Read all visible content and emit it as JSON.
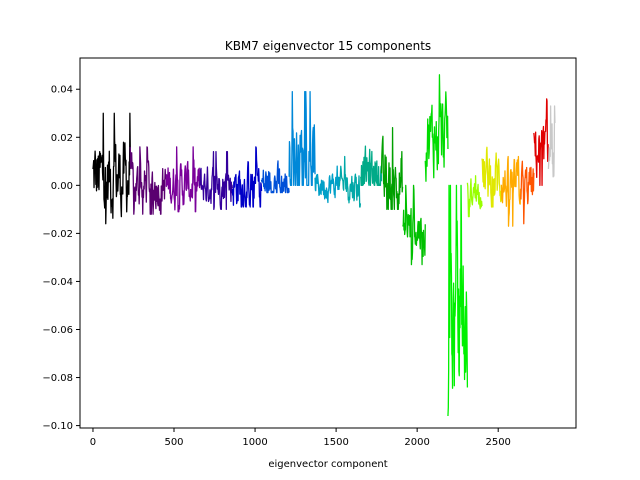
{
  "chart_data": {
    "type": "line",
    "title": "KBM7 eigenvector 15 components",
    "xlabel": "eigenvector component",
    "ylabel": "",
    "xlim": [
      -80,
      2980
    ],
    "ylim": [
      -0.101,
      0.053
    ],
    "x_ticks": [
      0,
      500,
      1000,
      1500,
      2000,
      2500
    ],
    "x_tick_labels": [
      "0",
      "500",
      "1000",
      "1500",
      "2000",
      "2500"
    ],
    "y_ticks": [
      0.04,
      0.02,
      0.0,
      -0.02,
      -0.04,
      -0.06,
      -0.08,
      -0.1
    ],
    "y_tick_labels": [
      "0.04",
      "0.02",
      "0.00",
      "−0.02",
      "−0.04",
      "−0.06",
      "−0.08",
      "−0.10"
    ],
    "grid": false,
    "legend": "none",
    "series": [
      {
        "color": "#000000",
        "x_range": [
          0,
          230
        ],
        "center": 0.003,
        "min": -0.016,
        "max": 0.03
      },
      {
        "color": "#5a0070",
        "x_range": [
          230,
          450
        ],
        "center": 0.0,
        "min": -0.012,
        "max": 0.016
      },
      {
        "color": "#7a009a",
        "x_range": [
          450,
          660
        ],
        "center": 0.0,
        "min": -0.011,
        "max": 0.016
      },
      {
        "color": "#34009c",
        "x_range": [
          660,
          860
        ],
        "center": 0.0,
        "min": -0.01,
        "max": 0.014
      },
      {
        "color": "#0000c8",
        "x_range": [
          860,
          1040
        ],
        "center": 0.0,
        "min": -0.009,
        "max": 0.016
      },
      {
        "color": "#0050d8",
        "x_range": [
          1040,
          1210
        ],
        "center": 0.0,
        "min": -0.003,
        "max": 0.015
      },
      {
        "color": "#0088d8",
        "x_range": [
          1210,
          1370
        ],
        "center": 0.01,
        "min": 0.0,
        "max": 0.039
      },
      {
        "color": "#00a0c8",
        "x_range": [
          1370,
          1520
        ],
        "center": 0.0,
        "min": -0.01,
        "max": 0.008
      },
      {
        "color": "#00a8a8",
        "x_range": [
          1520,
          1650
        ],
        "center": 0.0,
        "min": -0.009,
        "max": 0.012
      },
      {
        "color": "#00aa88",
        "x_range": [
          1650,
          1780
        ],
        "center": 0.005,
        "min": 0.0,
        "max": 0.023
      },
      {
        "color": "#00a000",
        "x_range": [
          1780,
          1910
        ],
        "center": 0.0,
        "min": -0.01,
        "max": 0.024
      },
      {
        "color": "#00c000",
        "x_range": [
          1910,
          2050
        ],
        "center": -0.018,
        "min": -0.033,
        "max": 0.0
      },
      {
        "color": "#00dc00",
        "x_range": [
          2050,
          2190
        ],
        "center": 0.02,
        "min": 0.0,
        "max": 0.046
      },
      {
        "color": "#00f000",
        "x_range": [
          2190,
          2310
        ],
        "center": -0.06,
        "min": -0.096,
        "max": 0.0
      },
      {
        "color": "#99ff00",
        "x_range": [
          2310,
          2400
        ],
        "center": -0.003,
        "min": -0.013,
        "max": 0.004
      },
      {
        "color": "#e0e800",
        "x_range": [
          2400,
          2520
        ],
        "center": 0.003,
        "min": -0.009,
        "max": 0.023
      },
      {
        "color": "#ffaa00",
        "x_range": [
          2520,
          2640
        ],
        "center": 0.0,
        "min": -0.017,
        "max": 0.012
      },
      {
        "color": "#ff5500",
        "x_range": [
          2640,
          2720
        ],
        "center": 0.0,
        "min": -0.016,
        "max": 0.01
      },
      {
        "color": "#e00000",
        "x_range": [
          2720,
          2810
        ],
        "center": 0.015,
        "min": 0.0,
        "max": 0.036
      },
      {
        "color": "#c8c8c8",
        "x_range": [
          2810,
          2850
        ],
        "center": 0.01,
        "min": 0.0,
        "max": 0.033
      }
    ]
  }
}
